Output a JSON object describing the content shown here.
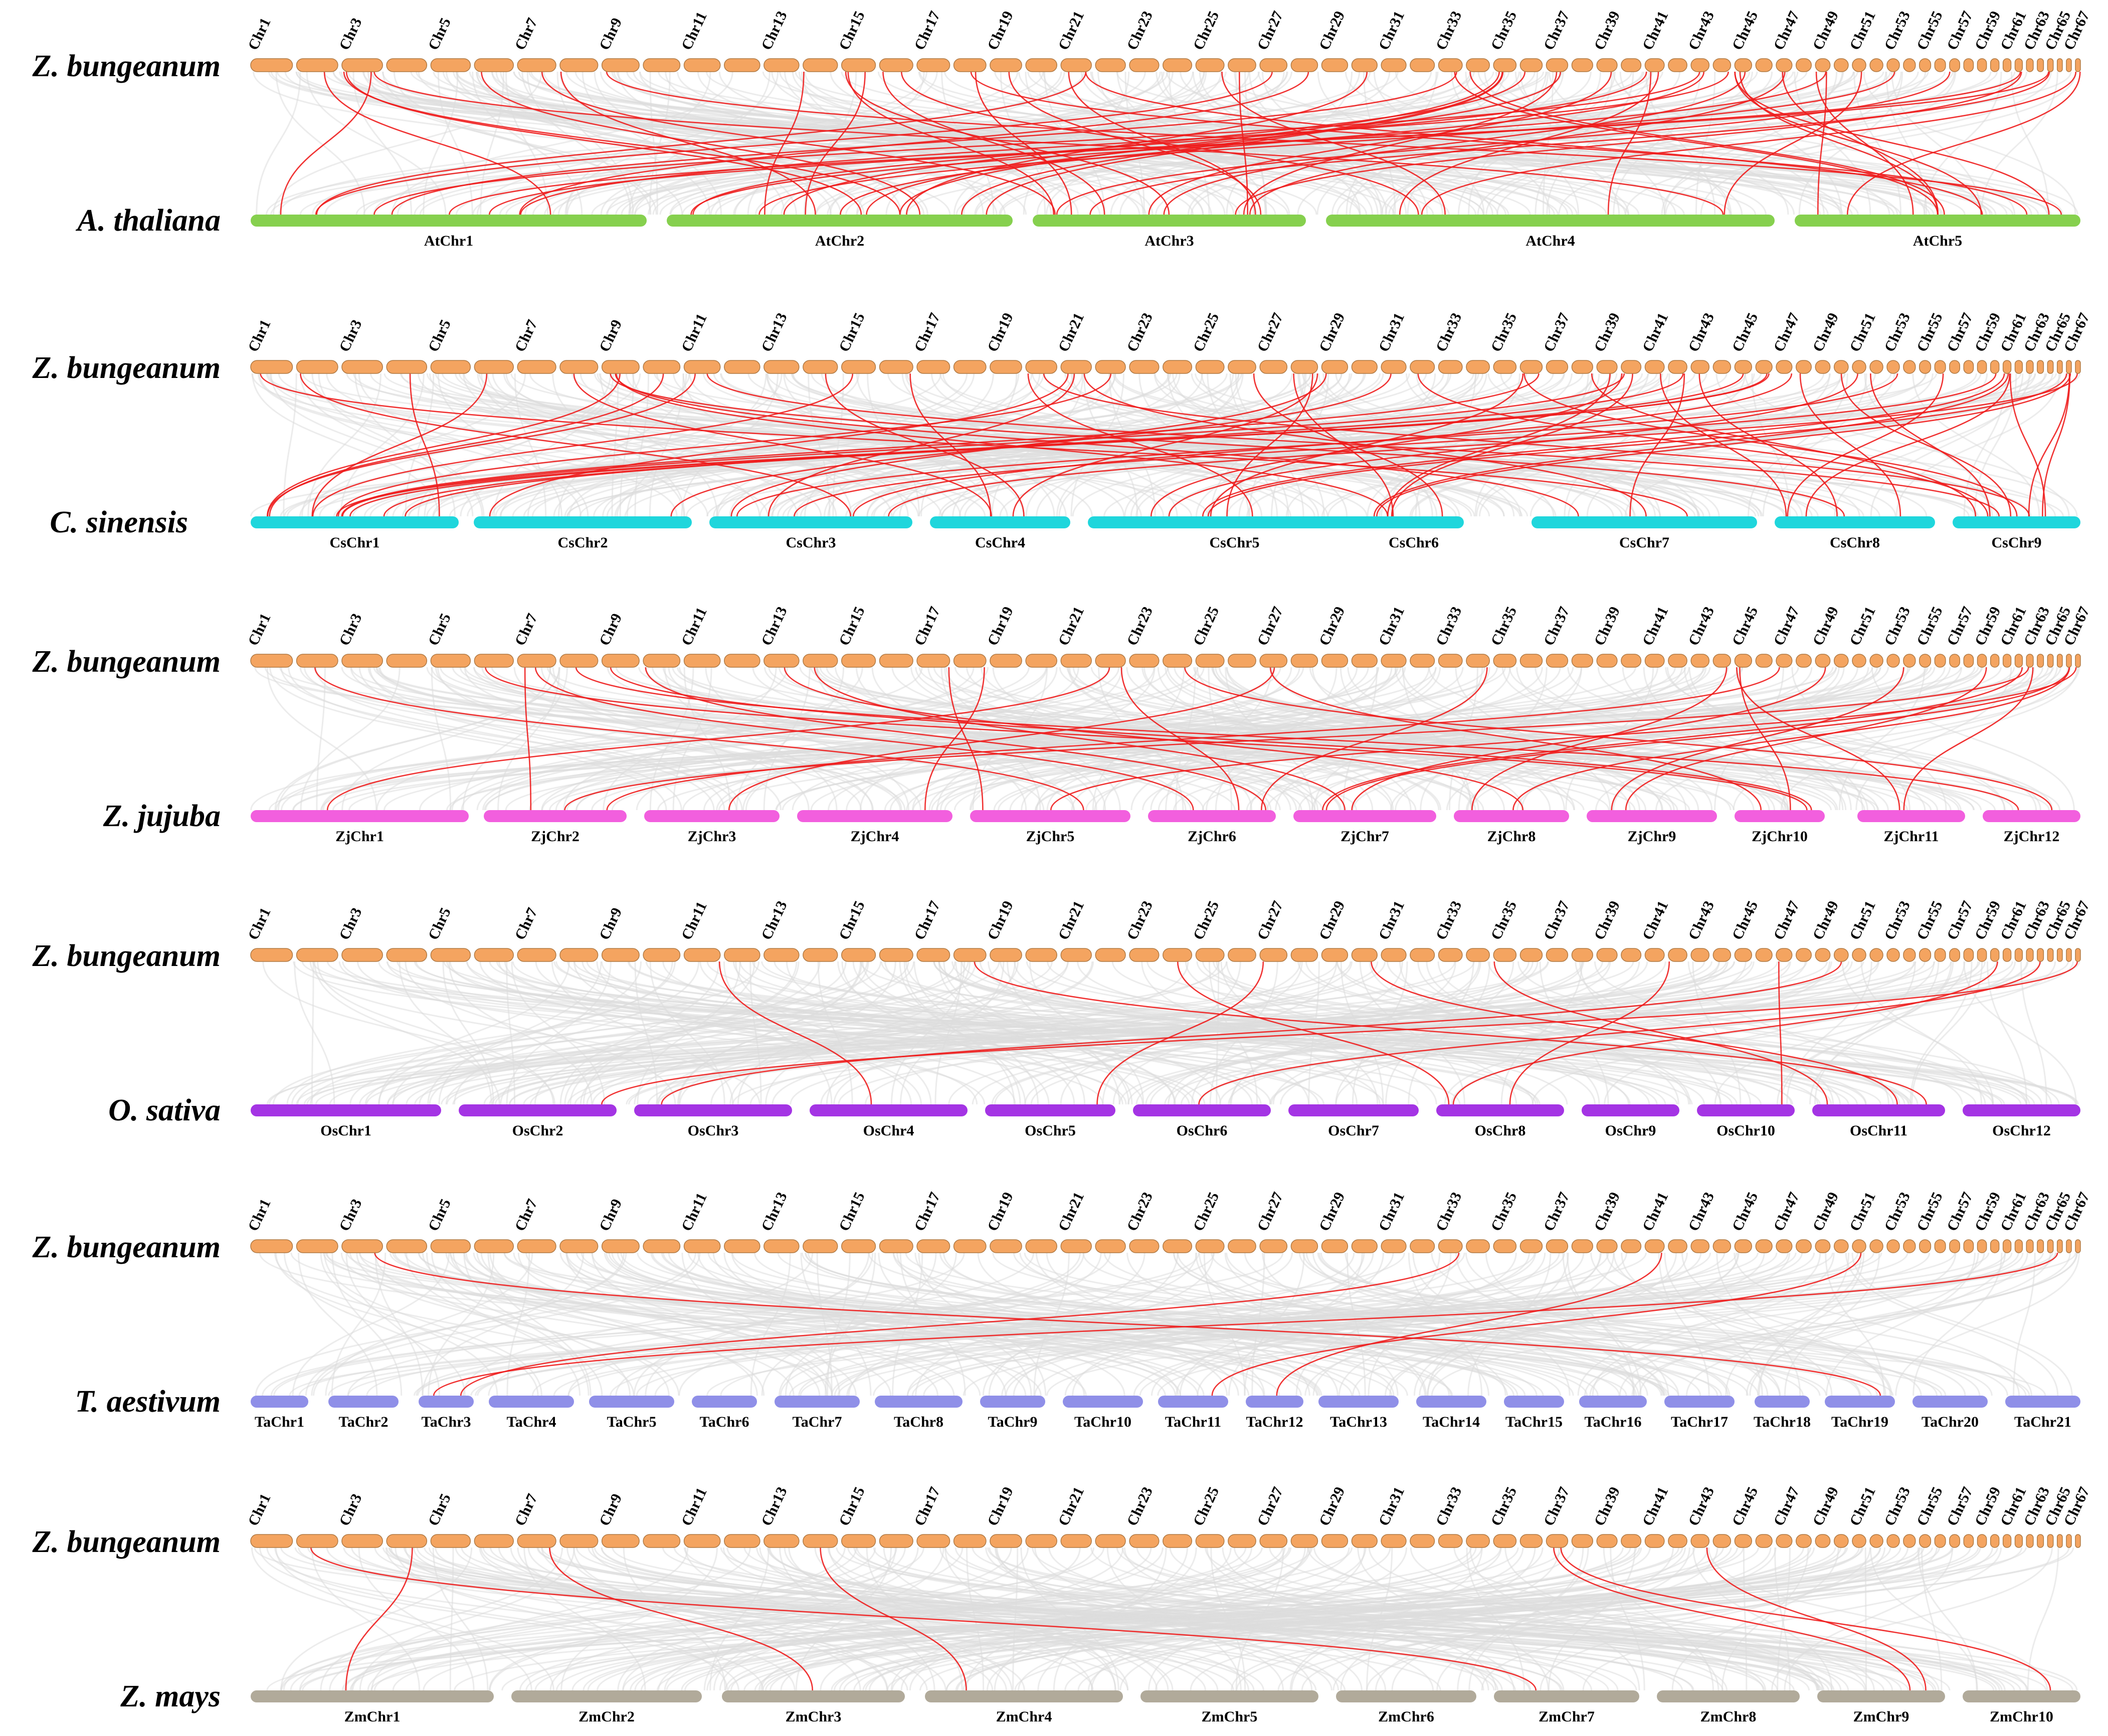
{
  "query_species": "Z. bungeanum",
  "query_chromosome_count": 68,
  "query_chromosome_labels": [
    "Chr1",
    "Chr3",
    "Chr5",
    "Chr7",
    "Chr9",
    "Chr11",
    "Chr13",
    "Chr15",
    "Chr17",
    "Chr19",
    "Chr21",
    "Chr23",
    "Chr25",
    "Chr27",
    "Chr29",
    "Chr31",
    "Chr33",
    "Chr35",
    "Chr37",
    "Chr39",
    "Chr41",
    "Chr43",
    "Chr45",
    "Chr47",
    "Chr49",
    "Chr51",
    "Chr53",
    "Chr55",
    "Chr57",
    "Chr59",
    "Chr61",
    "Chr63",
    "Chr65",
    "Chr67"
  ],
  "colors": {
    "query": "#f4a460",
    "highlight_link": "#ee1c1c",
    "background_link": "#dddddd"
  },
  "panels": [
    {
      "target_species": "A. thaliana",
      "color": "#86d04e",
      "chromosomes": [
        "AtChr1",
        "AtChr2",
        "AtChr3",
        "AtChr4",
        "AtChr5"
      ],
      "bounds": [
        [
          500,
          1290
        ],
        [
          1330,
          2020
        ],
        [
          2060,
          2605
        ],
        [
          2645,
          3540
        ],
        [
          3580,
          4150
        ]
      ],
      "highlight_links": 60
    },
    {
      "target_species": "C. sinensis",
      "color": "#1fd6dc",
      "chromosomes": [
        "CsChr1",
        "CsChr2",
        "CsChr3",
        "CsChr4",
        "CsChr5",
        "CsChr6",
        "CsChr7",
        "CsChr8",
        "CsChr9"
      ],
      "bounds": [
        [
          500,
          915
        ],
        [
          945,
          1380
        ],
        [
          1415,
          1820
        ],
        [
          1855,
          2135
        ],
        [
          2170,
          2755
        ],
        [
          2720,
          2920
        ],
        [
          3055,
          3505
        ],
        [
          3540,
          3860
        ],
        [
          3895,
          4150
        ]
      ],
      "highlight_links": 60
    },
    {
      "target_species": "Z. jujuba",
      "color": "#f25fde",
      "chromosomes": [
        "ZjChr1",
        "ZjChr2",
        "ZjChr3",
        "ZjChr4",
        "ZjChr5",
        "ZjChr6",
        "ZjChr7",
        "ZjChr8",
        "ZjChr9",
        "ZjChr10",
        "ZjChr11",
        "ZjChr12"
      ],
      "bounds": [
        [
          500,
          935
        ],
        [
          965,
          1250
        ],
        [
          1285,
          1555
        ],
        [
          1590,
          1900
        ],
        [
          1935,
          2255
        ],
        [
          2290,
          2545
        ],
        [
          2580,
          2865
        ],
        [
          2900,
          3130
        ],
        [
          3165,
          3425
        ],
        [
          3460,
          3640
        ],
        [
          3705,
          3920
        ],
        [
          3955,
          4150
        ]
      ],
      "highlight_links": 30
    },
    {
      "target_species": "O. sativa",
      "color": "#a434e4",
      "chromosomes": [
        "OsChr1",
        "OsChr2",
        "OsChr3",
        "OsChr4",
        "OsChr5",
        "OsChr6",
        "OsChr7",
        "OsChr8",
        "OsChr9",
        "OsChr10",
        "OsChr11",
        "OsChr12"
      ],
      "bounds": [
        [
          500,
          880
        ],
        [
          915,
          1230
        ],
        [
          1265,
          1580
        ],
        [
          1615,
          1930
        ],
        [
          1965,
          2225
        ],
        [
          2260,
          2535
        ],
        [
          2570,
          2830
        ],
        [
          2865,
          3120
        ],
        [
          3155,
          3350
        ],
        [
          3385,
          3580
        ],
        [
          3615,
          3880
        ],
        [
          3915,
          4150
        ]
      ],
      "highlight_links": 12
    },
    {
      "target_species": "T. aestivum",
      "color": "#8f8fe8",
      "chromosomes": [
        "TaChr1",
        "TaChr2",
        "TaChr3",
        "TaChr4",
        "TaChr5",
        "TaChr6",
        "TaChr7",
        "TaChr8",
        "TaChr9",
        "TaChr10",
        "TaChr11",
        "TaChr12",
        "TaChr13",
        "TaChr14",
        "TaChr15",
        "TaChr16",
        "TaChr17",
        "TaChr18",
        "TaChr19",
        "TaChr20",
        "TaChr21"
      ],
      "bounds": [
        [
          500,
          615
        ],
        [
          655,
          795
        ],
        [
          835,
          945
        ],
        [
          975,
          1145
        ],
        [
          1175,
          1345
        ],
        [
          1380,
          1510
        ],
        [
          1545,
          1715
        ],
        [
          1745,
          1920
        ],
        [
          1955,
          2085
        ],
        [
          2120,
          2280
        ],
        [
          2310,
          2450
        ],
        [
          2485,
          2600
        ],
        [
          2630,
          2790
        ],
        [
          2825,
          2965
        ],
        [
          3000,
          3120
        ],
        [
          3150,
          3285
        ],
        [
          3320,
          3460
        ],
        [
          3500,
          3610
        ],
        [
          3640,
          3780
        ],
        [
          3815,
          3965
        ],
        [
          4000,
          4150
        ]
      ],
      "highlight_links": 5
    },
    {
      "target_species": "Z. mays",
      "color": "#b1aa9a",
      "chromosomes": [
        "ZmChr1",
        "ZmChr2",
        "ZmChr3",
        "ZmChr4",
        "ZmChr5",
        "ZmChr6",
        "ZmChr7",
        "ZmChr8",
        "ZmChr9",
        "ZmChr10"
      ],
      "bounds": [
        [
          500,
          985
        ],
        [
          1020,
          1400
        ],
        [
          1440,
          1805
        ],
        [
          1845,
          2240
        ],
        [
          2275,
          2630
        ],
        [
          2665,
          2945
        ],
        [
          2980,
          3270
        ],
        [
          3305,
          3590
        ],
        [
          3625,
          3880
        ],
        [
          3915,
          4150
        ]
      ],
      "highlight_links": 7
    }
  ]
}
